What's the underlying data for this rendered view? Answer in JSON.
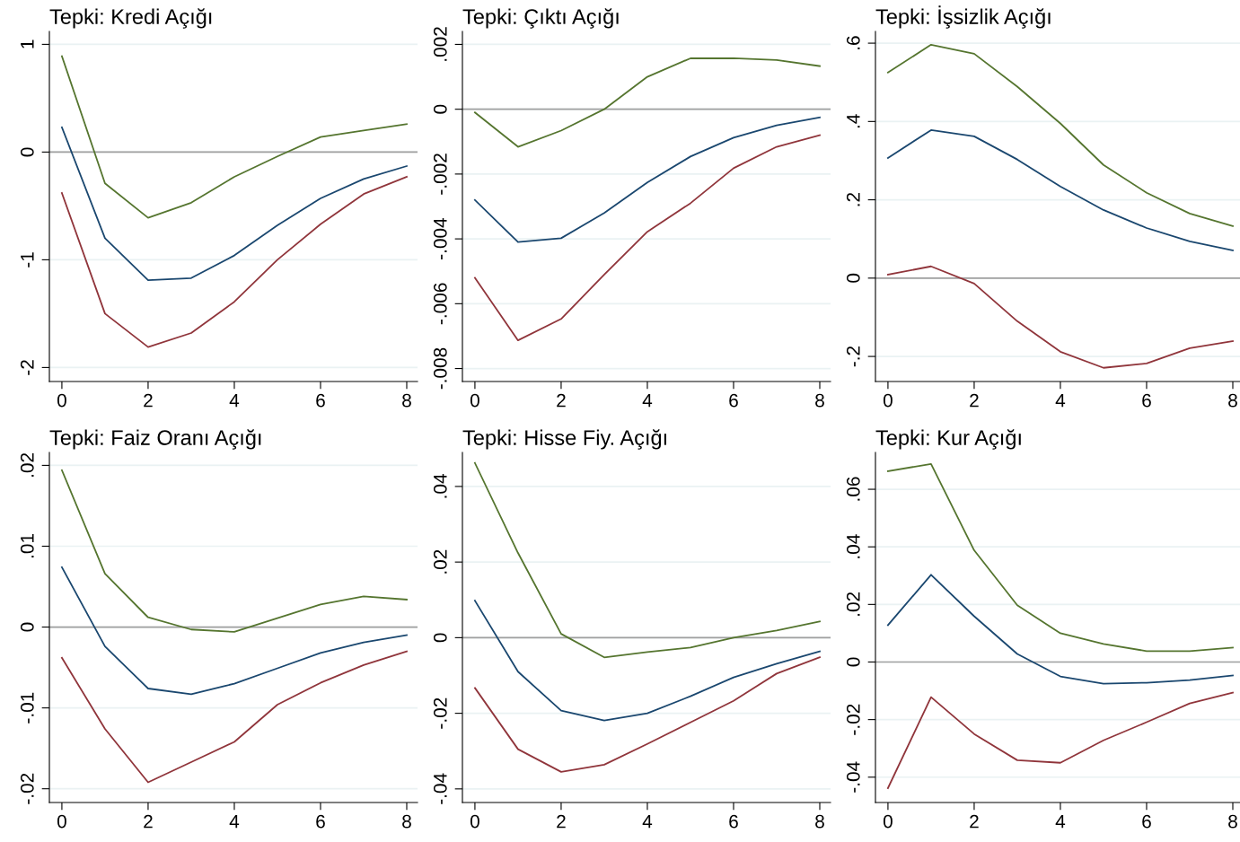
{
  "chart_data": [
    {
      "type": "line",
      "title": "Tepki: Kredi Açığı",
      "x": [
        0,
        1,
        2,
        3,
        4,
        5,
        6,
        7,
        8
      ],
      "xlim": [
        -0.29,
        8.25
      ],
      "xticks": [
        0,
        2,
        4,
        6,
        8
      ],
      "ylim": [
        -2.13,
        1.12
      ],
      "yticks": [
        {
          "value": -2,
          "label": "-2"
        },
        {
          "value": -1,
          "label": "-1"
        },
        {
          "value": 0,
          "label": "0"
        },
        {
          "value": 1,
          "label": "1"
        }
      ],
      "grid": "y",
      "ref_lines": [
        {
          "axis": "y",
          "value": 0,
          "color": "#a0a0a0"
        }
      ],
      "series": [
        {
          "color": "#55752f",
          "values": [
            0.89,
            -0.29,
            -0.61,
            -0.47,
            -0.23,
            -0.04,
            0.14,
            0.2,
            0.26
          ]
        },
        {
          "color": "#1a476f",
          "values": [
            0.23,
            -0.8,
            -1.19,
            -1.17,
            -0.96,
            -0.68,
            -0.43,
            -0.25,
            -0.13
          ]
        },
        {
          "color": "#90353b",
          "values": [
            -0.38,
            -1.5,
            -1.81,
            -1.68,
            -1.39,
            -1.0,
            -0.67,
            -0.39,
            -0.23
          ]
        }
      ]
    },
    {
      "type": "line",
      "title": "Tepki: Çıktı Açığı",
      "x": [
        0,
        1,
        2,
        3,
        4,
        5,
        6,
        7,
        8
      ],
      "xlim": [
        -0.29,
        8.25
      ],
      "xticks": [
        0,
        2,
        4,
        6,
        8
      ],
      "ylim": [
        -0.0084,
        0.0024
      ],
      "yticks": [
        {
          "value": -0.008,
          "label": "-.008"
        },
        {
          "value": -0.006,
          "label": "-.006"
        },
        {
          "value": -0.004,
          "label": "-.004"
        },
        {
          "value": -0.002,
          "label": "-.002"
        },
        {
          "value": 0,
          "label": "0"
        },
        {
          "value": 0.002,
          "label": ".002"
        }
      ],
      "grid": "y",
      "ref_lines": [
        {
          "axis": "y",
          "value": 0,
          "color": "#a0a0a0"
        }
      ],
      "series": [
        {
          "color": "#55752f",
          "values": [
            -0.0001,
            -0.00116,
            -0.00066,
            0.0,
            0.001,
            0.00157,
            0.00157,
            0.00152,
            0.00133
          ]
        },
        {
          "color": "#1a476f",
          "values": [
            -0.0028,
            -0.0041,
            -0.00398,
            -0.0032,
            -0.00226,
            -0.00146,
            -0.00088,
            -0.0005,
            -0.00025
          ]
        },
        {
          "color": "#90353b",
          "values": [
            -0.0052,
            -0.00713,
            -0.00647,
            -0.0051,
            -0.00378,
            -0.0029,
            -0.00182,
            -0.00116,
            -0.0008
          ]
        }
      ]
    },
    {
      "type": "line",
      "title": "Tepki: İşsizlik Açığı",
      "x": [
        0,
        1,
        2,
        3,
        4,
        5,
        6,
        7,
        8
      ],
      "xlim": [
        -0.29,
        8.25
      ],
      "xticks": [
        0,
        2,
        4,
        6,
        8
      ],
      "ylim": [
        -0.264,
        0.63
      ],
      "yticks": [
        {
          "value": -0.2,
          "label": "-.2"
        },
        {
          "value": 0,
          "label": "0"
        },
        {
          "value": 0.2,
          "label": ".2"
        },
        {
          "value": 0.4,
          "label": ".4"
        },
        {
          "value": 0.6,
          "label": ".6"
        }
      ],
      "grid": "y",
      "ref_lines": [
        {
          "axis": "y",
          "value": 0,
          "color": "#a0a0a0"
        }
      ],
      "series": [
        {
          "color": "#55752f",
          "values": [
            0.525,
            0.596,
            0.573,
            0.489,
            0.395,
            0.289,
            0.218,
            0.165,
            0.133
          ]
        },
        {
          "color": "#1a476f",
          "values": [
            0.307,
            0.378,
            0.362,
            0.303,
            0.234,
            0.174,
            0.128,
            0.094,
            0.071
          ]
        },
        {
          "color": "#90353b",
          "values": [
            0.009,
            0.03,
            -0.014,
            -0.11,
            -0.188,
            -0.229,
            -0.218,
            -0.179,
            -0.161
          ]
        }
      ]
    },
    {
      "type": "line",
      "title": "Tepki: Faiz Oranı Açığı",
      "x": [
        0,
        1,
        2,
        3,
        4,
        5,
        6,
        7,
        8
      ],
      "xlim": [
        -0.29,
        8.25
      ],
      "xticks": [
        0,
        2,
        4,
        6,
        8
      ],
      "ylim": [
        -0.0217,
        0.0216
      ],
      "yticks": [
        {
          "value": -0.02,
          "label": "-.02"
        },
        {
          "value": -0.01,
          "label": "-.01"
        },
        {
          "value": 0,
          "label": "0"
        },
        {
          "value": 0.01,
          "label": ".01"
        },
        {
          "value": 0.02,
          "label": ".02"
        }
      ],
      "grid": "y",
      "ref_lines": [
        {
          "axis": "y",
          "value": 0,
          "color": "#a0a0a0"
        }
      ],
      "series": [
        {
          "color": "#55752f",
          "values": [
            0.0194,
            0.0066,
            0.0012,
            -0.0003,
            -0.0006,
            0.0011,
            0.0028,
            0.0038,
            0.0034
          ]
        },
        {
          "color": "#1a476f",
          "values": [
            0.0074,
            -0.0024,
            -0.0076,
            -0.0083,
            -0.007,
            -0.0051,
            -0.0032,
            -0.0019,
            -0.001
          ]
        },
        {
          "color": "#90353b",
          "values": [
            -0.0038,
            -0.0126,
            -0.0192,
            -0.0167,
            -0.0142,
            -0.0096,
            -0.0069,
            -0.0047,
            -0.003
          ]
        }
      ]
    },
    {
      "type": "line",
      "title": "Tepki: Hisse Fiy. Açığı",
      "x": [
        0,
        1,
        2,
        3,
        4,
        5,
        6,
        7,
        8
      ],
      "xlim": [
        -0.29,
        8.25
      ],
      "xticks": [
        0,
        2,
        4,
        6,
        8
      ],
      "ylim": [
        -0.0436,
        0.049
      ],
      "yticks": [
        {
          "value": -0.04,
          "label": "-.04"
        },
        {
          "value": -0.02,
          "label": "-.02"
        },
        {
          "value": 0,
          "label": "0"
        },
        {
          "value": 0.02,
          "label": ".02"
        },
        {
          "value": 0.04,
          "label": ".04"
        }
      ],
      "grid": "y",
      "ref_lines": [
        {
          "axis": "y",
          "value": 0,
          "color": "#a0a0a0"
        }
      ],
      "series": [
        {
          "color": "#55752f",
          "values": [
            0.0462,
            0.0224,
            0.001,
            -0.0052,
            -0.0038,
            -0.0026,
            0.0,
            0.0019,
            0.0043
          ]
        },
        {
          "color": "#1a476f",
          "values": [
            0.0098,
            -0.009,
            -0.0193,
            -0.0219,
            -0.02,
            -0.0155,
            -0.0105,
            -0.0069,
            -0.0036
          ]
        },
        {
          "color": "#90353b",
          "values": [
            -0.0133,
            -0.0295,
            -0.0355,
            -0.0336,
            -0.0281,
            -0.0224,
            -0.0167,
            -0.0095,
            -0.0052
          ]
        }
      ]
    },
    {
      "type": "line",
      "title": "Tepki: Kur Açığı",
      "x": [
        0,
        1,
        2,
        3,
        4,
        5,
        6,
        7,
        8
      ],
      "xlim": [
        -0.29,
        8.25
      ],
      "xticks": [
        0,
        2,
        4,
        6,
        8
      ],
      "ylim": [
        -0.0488,
        0.0728
      ],
      "yticks": [
        {
          "value": -0.04,
          "label": "-.04"
        },
        {
          "value": -0.02,
          "label": "-.02"
        },
        {
          "value": 0,
          "label": "0"
        },
        {
          "value": 0.02,
          "label": ".02"
        },
        {
          "value": 0.04,
          "label": ".04"
        },
        {
          "value": 0.06,
          "label": ".06"
        }
      ],
      "grid": "y",
      "ref_lines": [
        {
          "axis": "y",
          "value": 0,
          "color": "#a0a0a0"
        }
      ],
      "series": [
        {
          "color": "#55752f",
          "values": [
            0.0663,
            0.0688,
            0.0388,
            0.0197,
            0.01,
            0.0063,
            0.0038,
            0.0038,
            0.005
          ]
        },
        {
          "color": "#1a476f",
          "values": [
            0.0128,
            0.0303,
            0.0159,
            0.0028,
            -0.005,
            -0.0075,
            -0.0072,
            -0.0063,
            -0.0047
          ]
        },
        {
          "color": "#90353b",
          "values": [
            -0.0438,
            -0.0122,
            -0.025,
            -0.0341,
            -0.035,
            -0.0272,
            -0.0209,
            -0.0144,
            -0.0106
          ]
        }
      ]
    }
  ]
}
